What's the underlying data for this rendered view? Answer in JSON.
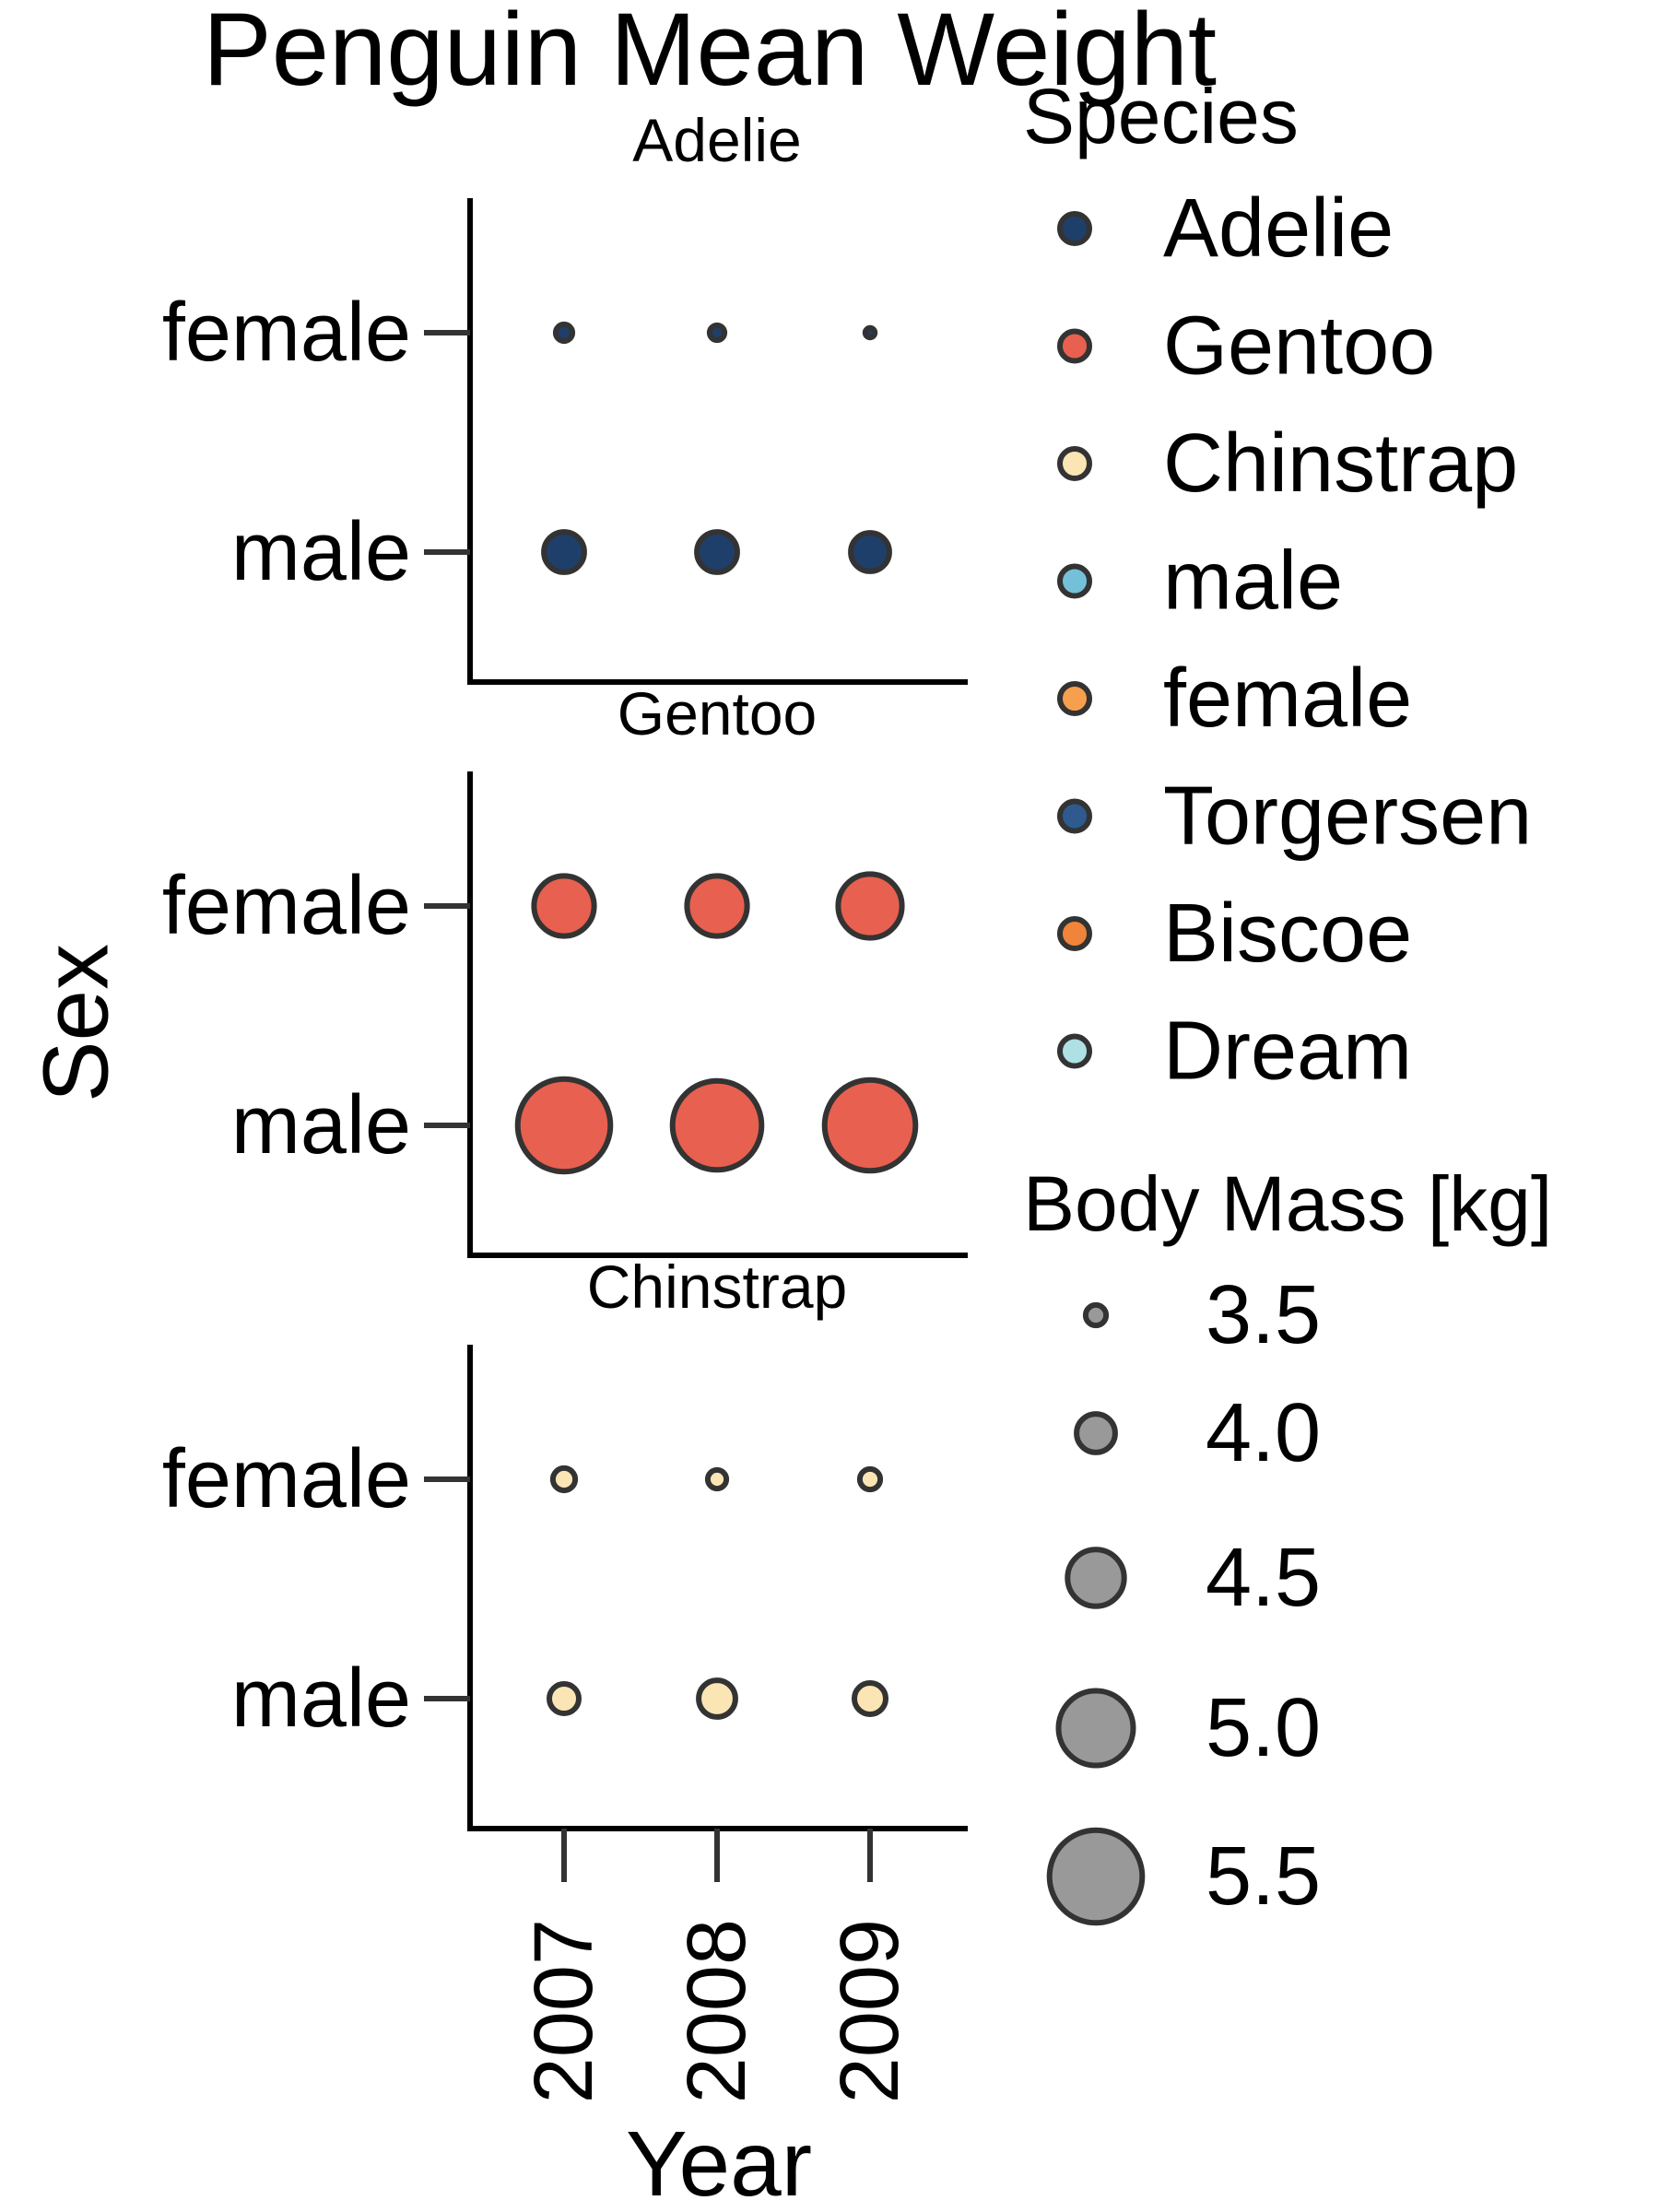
{
  "chart_data": {
    "type": "scatter",
    "title": "Penguin Mean Weight",
    "xlabel": "Year",
    "ylabel": "Sex",
    "x_categories": [
      "2007",
      "2008",
      "2009"
    ],
    "y_categories": [
      "female",
      "male"
    ],
    "size_label": "Body Mass [kg]",
    "grid": false,
    "panels": [
      {
        "title": "Adelie",
        "color": "#1f3f6b",
        "points": [
          {
            "year": "2007",
            "sex": "female",
            "mass": 3.4
          },
          {
            "year": "2008",
            "sex": "female",
            "mass": 3.35
          },
          {
            "year": "2009",
            "sex": "female",
            "mass": 3.2
          },
          {
            "year": "2007",
            "sex": "male",
            "mass": 4.05
          },
          {
            "year": "2008",
            "sex": "male",
            "mass": 4.05
          },
          {
            "year": "2009",
            "sex": "male",
            "mass": 4.0
          }
        ]
      },
      {
        "title": "Gentoo",
        "color": "#e8604f",
        "points": [
          {
            "year": "2007",
            "sex": "female",
            "mass": 4.6
          },
          {
            "year": "2008",
            "sex": "female",
            "mass": 4.6
          },
          {
            "year": "2009",
            "sex": "female",
            "mass": 4.7
          },
          {
            "year": "2007",
            "sex": "male",
            "mass": 5.5
          },
          {
            "year": "2008",
            "sex": "male",
            "mass": 5.4
          },
          {
            "year": "2009",
            "sex": "male",
            "mass": 5.45
          }
        ]
      },
      {
        "title": "Chinstrap",
        "color": "#fce5b5",
        "points": [
          {
            "year": "2007",
            "sex": "female",
            "mass": 3.55
          },
          {
            "year": "2008",
            "sex": "female",
            "mass": 3.45
          },
          {
            "year": "2009",
            "sex": "female",
            "mass": 3.5
          },
          {
            "year": "2007",
            "sex": "male",
            "mass": 3.75
          },
          {
            "year": "2008",
            "sex": "male",
            "mass": 3.95
          },
          {
            "year": "2009",
            "sex": "male",
            "mass": 3.8
          }
        ]
      }
    ],
    "legend": {
      "title": "Species",
      "position": "right",
      "entries": [
        {
          "label": "Adelie",
          "color": "#1f3f6b"
        },
        {
          "label": "Gentoo",
          "color": "#e8604f"
        },
        {
          "label": "Chinstrap",
          "color": "#fce5b5"
        },
        {
          "label": "male",
          "color": "#74c0d9"
        },
        {
          "label": "female",
          "color": "#f6a04d"
        },
        {
          "label": "Torgersen",
          "color": "#2e5a8e"
        },
        {
          "label": "Biscoe",
          "color": "#f0843a"
        },
        {
          "label": "Dream",
          "color": "#aee0e4"
        }
      ]
    },
    "size_legend": {
      "title": "Body Mass [kg]",
      "color": "#999999",
      "entries": [
        {
          "label": "3.5",
          "mass": 3.5
        },
        {
          "label": "4.0",
          "mass": 4.0
        },
        {
          "label": "4.5",
          "mass": 4.5
        },
        {
          "label": "5.0",
          "mass": 5.0
        },
        {
          "label": "5.5",
          "mass": 5.5
        }
      ]
    }
  }
}
